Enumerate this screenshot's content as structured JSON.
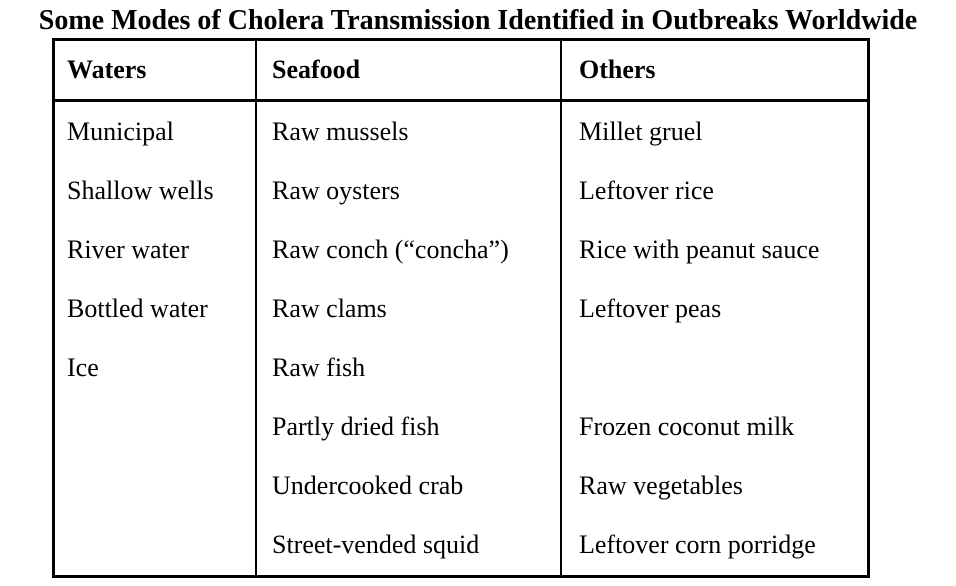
{
  "title": "Some Modes of Cholera Transmission Identified in Outbreaks Worldwide",
  "table": {
    "columns": [
      {
        "header": "Waters",
        "items": [
          "Municipal",
          "Shallow wells",
          "River water",
          "Bottled water",
          "Ice",
          "",
          "",
          ""
        ]
      },
      {
        "header": "Seafood",
        "items": [
          "Raw mussels",
          "Raw oysters",
          "Raw conch (“concha”)",
          "Raw clams",
          "Raw fish",
          "Partly dried fish",
          "Undercooked crab",
          "Street-vended squid"
        ]
      },
      {
        "header": "Others",
        "items": [
          "Millet gruel",
          "Leftover rice",
          "Rice with peanut sauce",
          "Leftover peas",
          "",
          "Frozen coconut milk",
          "Raw vegetables",
          "Leftover corn porridge"
        ]
      }
    ]
  }
}
